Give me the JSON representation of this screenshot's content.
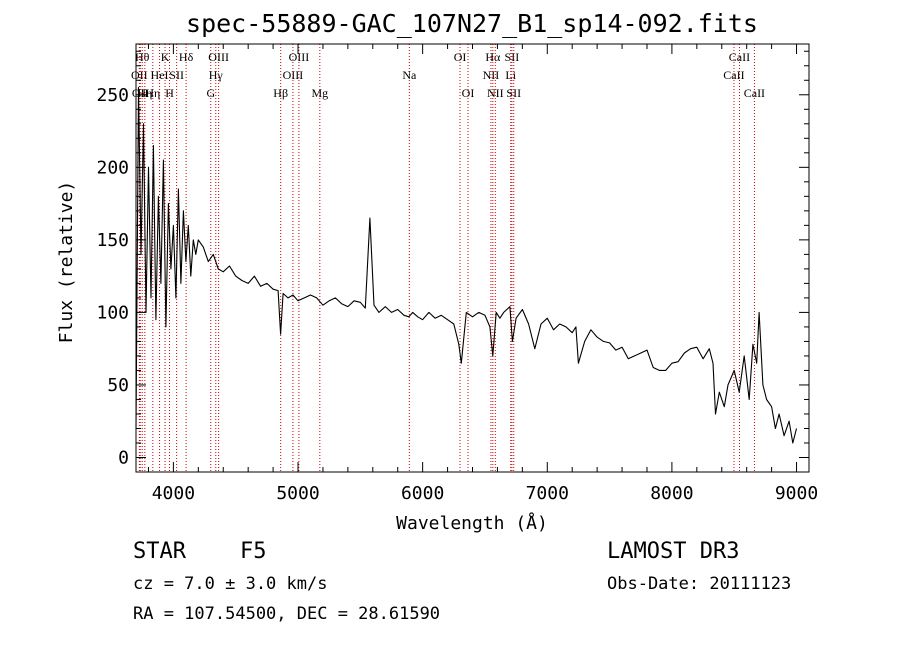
{
  "chart_data": {
    "type": "line",
    "title": "spec-55889-GAC_107N27_B1_sp14-092.fits",
    "xlabel": "Wavelength (Å)",
    "ylabel": "Flux (relative)",
    "xlim": [
      3700,
      9100
    ],
    "ylim": [
      -10,
      285
    ],
    "xticks": [
      4000,
      5000,
      6000,
      7000,
      8000,
      9000
    ],
    "yticks": [
      0,
      50,
      100,
      150,
      200,
      250
    ],
    "line_color": "#000000",
    "marker_color": "#cc0000",
    "grid": false,
    "series": [
      {
        "x": [
          3700,
          3720,
          3740,
          3760,
          3780,
          3800,
          3820,
          3840,
          3860,
          3880,
          3900,
          3920,
          3940,
          3960,
          3980,
          4000,
          4020,
          4040,
          4060,
          4080,
          4100,
          4120,
          4140,
          4160,
          4180,
          4200,
          4240,
          4280,
          4320,
          4360,
          4400,
          4450,
          4500,
          4550,
          4600,
          4650,
          4700,
          4750,
          4800,
          4840,
          4860,
          4880,
          4920,
          4960,
          5000,
          5050,
          5100,
          5150,
          5200,
          5250,
          5300,
          5350,
          5400,
          5450,
          5500,
          5540,
          5577,
          5610,
          5650,
          5700,
          5750,
          5800,
          5850,
          5890,
          5920,
          5960,
          6000,
          6050,
          6100,
          6150,
          6200,
          6250,
          6290,
          6310,
          6350,
          6400,
          6450,
          6500,
          6540,
          6563,
          6590,
          6620,
          6650,
          6700,
          6720,
          6750,
          6800,
          6850,
          6900,
          6950,
          7000,
          7050,
          7100,
          7150,
          7200,
          7230,
          7250,
          7300,
          7350,
          7400,
          7450,
          7500,
          7550,
          7600,
          7650,
          7700,
          7750,
          7800,
          7850,
          7900,
          7950,
          8000,
          8050,
          8100,
          8150,
          8200,
          8250,
          8300,
          8330,
          8350,
          8380,
          8420,
          8450,
          8500,
          8540,
          8580,
          8600,
          8620,
          8650,
          8680,
          8700,
          8730,
          8760,
          8800,
          8830,
          8860,
          8900,
          8940,
          8970,
          9000
        ],
        "y": [
          20,
          255,
          140,
          230,
          100,
          200,
          110,
          215,
          95,
          180,
          120,
          205,
          90,
          175,
          130,
          160,
          110,
          185,
          120,
          170,
          135,
          160,
          125,
          150,
          140,
          150,
          145,
          135,
          140,
          130,
          128,
          132,
          125,
          122,
          120,
          125,
          118,
          120,
          116,
          115,
          85,
          113,
          110,
          112,
          108,
          110,
          112,
          110,
          105,
          108,
          110,
          106,
          104,
          108,
          107,
          103,
          165,
          105,
          100,
          104,
          100,
          102,
          98,
          97,
          100,
          97,
          95,
          100,
          96,
          98,
          95,
          92,
          78,
          65,
          100,
          97,
          100,
          98,
          90,
          70,
          100,
          96,
          100,
          104,
          80,
          96,
          102,
          92,
          75,
          92,
          96,
          88,
          92,
          90,
          86,
          90,
          65,
          80,
          88,
          83,
          80,
          79,
          74,
          76,
          68,
          70,
          72,
          74,
          62,
          60,
          60,
          65,
          66,
          72,
          75,
          76,
          68,
          75,
          65,
          30,
          45,
          35,
          50,
          60,
          45,
          70,
          55,
          40,
          78,
          65,
          100,
          50,
          40,
          35,
          20,
          30,
          15,
          25,
          10,
          20
        ],
        "name": ""
      }
    ],
    "line_markers": [
      {
        "x": 3727,
        "label": "OII",
        "row": 1
      },
      {
        "x": 3734,
        "label": "OII",
        "row": 2
      },
      {
        "x": 3750,
        "label": "Hθ",
        "row": 0
      },
      {
        "x": 3771,
        "label": "Hη",
        "row": 2
      },
      {
        "x": 3835,
        "label": "Hη",
        "row": 2
      },
      {
        "x": 3889,
        "label": "HeI",
        "row": 1
      },
      {
        "x": 3933,
        "label": "K",
        "row": 0
      },
      {
        "x": 3969,
        "label": "H",
        "row": 2
      },
      {
        "x": 4026,
        "label": "SII",
        "row": 1
      },
      {
        "x": 4102,
        "label": "Hδ",
        "row": 0
      },
      {
        "x": 4300,
        "label": "G",
        "row": 2
      },
      {
        "x": 4340,
        "label": "Hγ",
        "row": 1
      },
      {
        "x": 4363,
        "label": "OIII",
        "row": 0
      },
      {
        "x": 4861,
        "label": "Hβ",
        "row": 2
      },
      {
        "x": 4959,
        "label": "OIII",
        "row": 1
      },
      {
        "x": 5007,
        "label": "OIII",
        "row": 0
      },
      {
        "x": 5175,
        "label": "Mg",
        "row": 2
      },
      {
        "x": 5893,
        "label": "Na",
        "row": 1
      },
      {
        "x": 6300,
        "label": "OI",
        "row": 0
      },
      {
        "x": 6364,
        "label": "OI",
        "row": 2
      },
      {
        "x": 6548,
        "label": "NII",
        "row": 1
      },
      {
        "x": 6563,
        "label": "Hα",
        "row": 0
      },
      {
        "x": 6583,
        "label": "NII",
        "row": 2
      },
      {
        "x": 6707,
        "label": "Li",
        "row": 1
      },
      {
        "x": 6716,
        "label": "SII",
        "row": 0
      },
      {
        "x": 6731,
        "label": "SII",
        "row": 2
      },
      {
        "x": 8498,
        "label": "CaII",
        "row": 1
      },
      {
        "x": 8542,
        "label": "CaII",
        "row": 0
      },
      {
        "x": 8662,
        "label": "CaII",
        "row": 2
      }
    ]
  },
  "footer": {
    "class_label": "STAR",
    "subclass": "F5",
    "survey": "LAMOST DR3",
    "cz": "cz = 7.0 ± 3.0 km/s",
    "obs_date": "Obs-Date: 20111123",
    "coords": "RA = 107.54500, DEC =  28.61590"
  }
}
